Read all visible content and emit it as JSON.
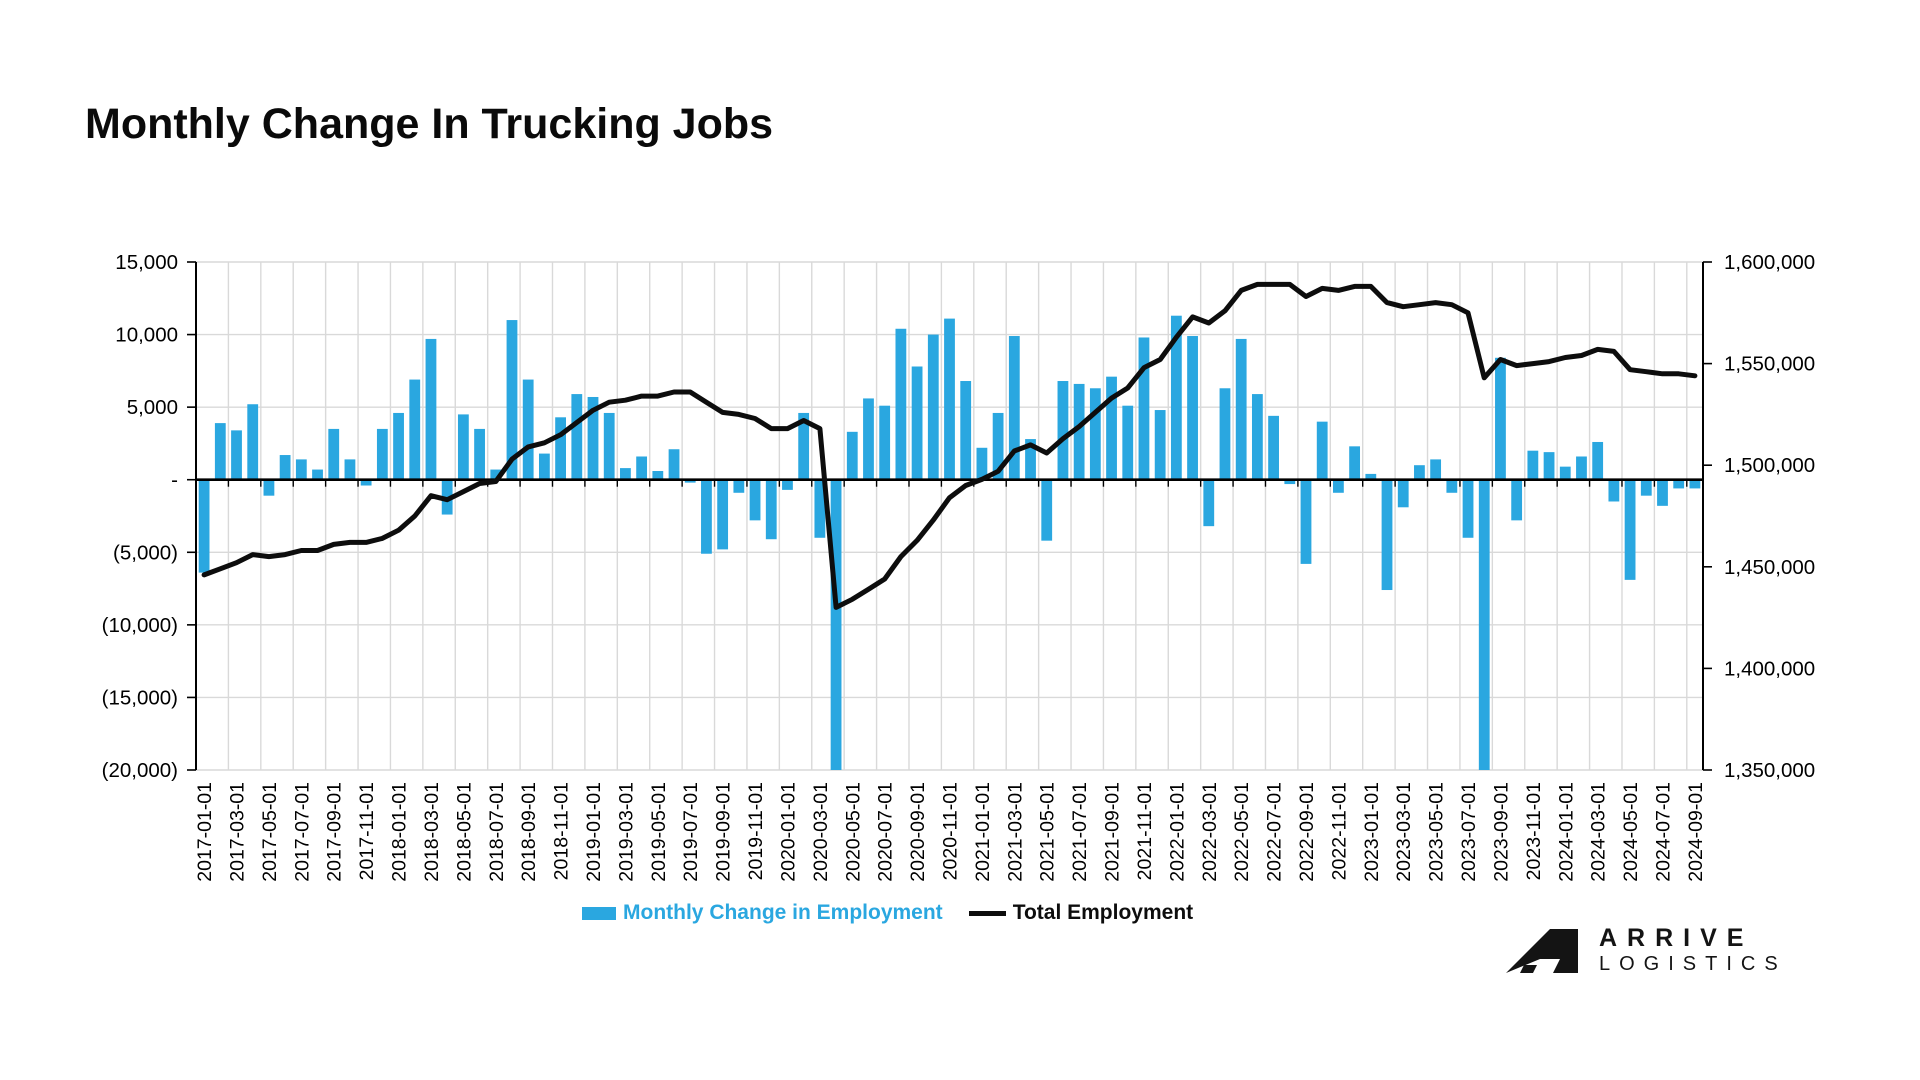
{
  "title": "Monthly Change In Trucking Jobs",
  "legend": {
    "items": [
      {
        "label": "Monthly Change in Employment",
        "color": "#2aa7e0",
        "marker": "bar"
      },
      {
        "label": "Total Employment",
        "color": "#0d0d0d",
        "marker": "line"
      }
    ]
  },
  "logo": {
    "icon": "arrive-logo-mark",
    "line1": "ARRIVE",
    "line2": "LOGISTICS"
  },
  "colors": {
    "bar": "#2aa7e0",
    "line": "#0d0d0d",
    "gridline": "#d9d9d9",
    "axis": "#000000",
    "text": "#000000"
  },
  "chart_data": {
    "type": "bar",
    "subtype": "bar+line dual-axis combo",
    "x_tick_every": 2,
    "x": [
      "2017-01-01",
      "2017-02-01",
      "2017-03-01",
      "2017-04-01",
      "2017-05-01",
      "2017-06-01",
      "2017-07-01",
      "2017-08-01",
      "2017-09-01",
      "2017-10-01",
      "2017-11-01",
      "2017-12-01",
      "2018-01-01",
      "2018-02-01",
      "2018-03-01",
      "2018-04-01",
      "2018-05-01",
      "2018-06-01",
      "2018-07-01",
      "2018-08-01",
      "2018-09-01",
      "2018-10-01",
      "2018-11-01",
      "2018-12-01",
      "2019-01-01",
      "2019-02-01",
      "2019-03-01",
      "2019-04-01",
      "2019-05-01",
      "2019-06-01",
      "2019-07-01",
      "2019-08-01",
      "2019-09-01",
      "2019-10-01",
      "2019-11-01",
      "2019-12-01",
      "2020-01-01",
      "2020-02-01",
      "2020-03-01",
      "2020-04-01",
      "2020-05-01",
      "2020-06-01",
      "2020-07-01",
      "2020-08-01",
      "2020-09-01",
      "2020-10-01",
      "2020-11-01",
      "2020-12-01",
      "2021-01-01",
      "2021-02-01",
      "2021-03-01",
      "2021-04-01",
      "2021-05-01",
      "2021-06-01",
      "2021-07-01",
      "2021-08-01",
      "2021-09-01",
      "2021-10-01",
      "2021-11-01",
      "2021-12-01",
      "2022-01-01",
      "2022-02-01",
      "2022-03-01",
      "2022-04-01",
      "2022-05-01",
      "2022-06-01",
      "2022-07-01",
      "2022-08-01",
      "2022-09-01",
      "2022-10-01",
      "2022-11-01",
      "2022-12-01",
      "2023-01-01",
      "2023-02-01",
      "2023-03-01",
      "2023-04-01",
      "2023-05-01",
      "2023-06-01",
      "2023-07-01",
      "2023-08-01",
      "2023-09-01",
      "2023-10-01",
      "2023-11-01",
      "2023-12-01",
      "2024-01-01",
      "2024-02-01",
      "2024-03-01",
      "2024-04-01",
      "2024-05-01",
      "2024-06-01",
      "2024-07-01",
      "2024-08-01",
      "2024-09-01"
    ],
    "series": [
      {
        "name": "Monthly Change in Employment",
        "type": "bar",
        "yaxis": "left",
        "color": "#2aa7e0",
        "values": [
          -6400,
          3900,
          3400,
          5200,
          -1100,
          1700,
          1400,
          700,
          3500,
          1400,
          -400,
          3500,
          4600,
          6900,
          9700,
          -2400,
          4500,
          3500,
          700,
          11000,
          6900,
          1800,
          4300,
          5900,
          5700,
          4600,
          800,
          1600,
          600,
          2100,
          -200,
          -5100,
          -4800,
          -900,
          -2800,
          -4100,
          -700,
          4600,
          -4000,
          -88000,
          3300,
          5600,
          5100,
          10400,
          7800,
          10000,
          11100,
          6800,
          2200,
          4600,
          9900,
          2800,
          -4200,
          6800,
          6600,
          6300,
          7100,
          5100,
          9800,
          4800,
          11300,
          9900,
          -3200,
          6300,
          9700,
          5900,
          4400,
          -300,
          -5800,
          4000,
          -900,
          2300,
          400,
          -7600,
          -1900,
          1000,
          1400,
          -900,
          -4000,
          -30000,
          8400,
          -2800,
          2000,
          1900,
          900,
          1600,
          2600,
          -1500,
          -6900,
          -1100,
          -1800,
          -600,
          -600
        ]
      },
      {
        "name": "Total Employment",
        "type": "line",
        "yaxis": "right",
        "color": "#0d0d0d",
        "values": [
          1446000,
          1449000,
          1452000,
          1456000,
          1455000,
          1456000,
          1458000,
          1458000,
          1461000,
          1462000,
          1462000,
          1464000,
          1468000,
          1475000,
          1485000,
          1483000,
          1487000,
          1491000,
          1492000,
          1503000,
          1509000,
          1511000,
          1515000,
          1521000,
          1527000,
          1531000,
          1532000,
          1534000,
          1534000,
          1536000,
          1536000,
          1531000,
          1526000,
          1525000,
          1523000,
          1518000,
          1518000,
          1522000,
          1518000,
          1430000,
          1434000,
          1439000,
          1444000,
          1455000,
          1463000,
          1473000,
          1484000,
          1490000,
          1493000,
          1497000,
          1507000,
          1510000,
          1506000,
          1513000,
          1519000,
          1526000,
          1533000,
          1538000,
          1548000,
          1552000,
          1563000,
          1573000,
          1570000,
          1576000,
          1586000,
          1589000,
          1589000,
          1589000,
          1583000,
          1587000,
          1586000,
          1588000,
          1588000,
          1580000,
          1578000,
          1579000,
          1580000,
          1579000,
          1575000,
          1543000,
          1552000,
          1549000,
          1550000,
          1551000,
          1553000,
          1554000,
          1557000,
          1556000,
          1547000,
          1546000,
          1545000,
          1545000,
          1544000
        ]
      }
    ],
    "left_axis": {
      "max": 15000,
      "min": -20000,
      "tick_step": 5000,
      "tick_values": [
        15000,
        10000,
        5000,
        0,
        -5000,
        -10000,
        -15000,
        -20000
      ],
      "tick_labels": [
        "15,000",
        "10,000",
        "5,000",
        "-",
        "(5,000)",
        "(10,000)",
        "(15,000)",
        "(20,000)"
      ]
    },
    "right_axis": {
      "max": 1600000,
      "min": 1350000,
      "tick_step": 50000,
      "tick_values": [
        1600000,
        1550000,
        1500000,
        1450000,
        1400000,
        1350000
      ],
      "tick_labels": [
        "1,600,000",
        "1,550,000",
        "1,500,000",
        "1,450,000",
        "1,400,000",
        "1,350,000"
      ]
    },
    "grid": true,
    "legend_position": "bottom",
    "notes": "bars below -20,000 are clipped at axis minimum"
  }
}
